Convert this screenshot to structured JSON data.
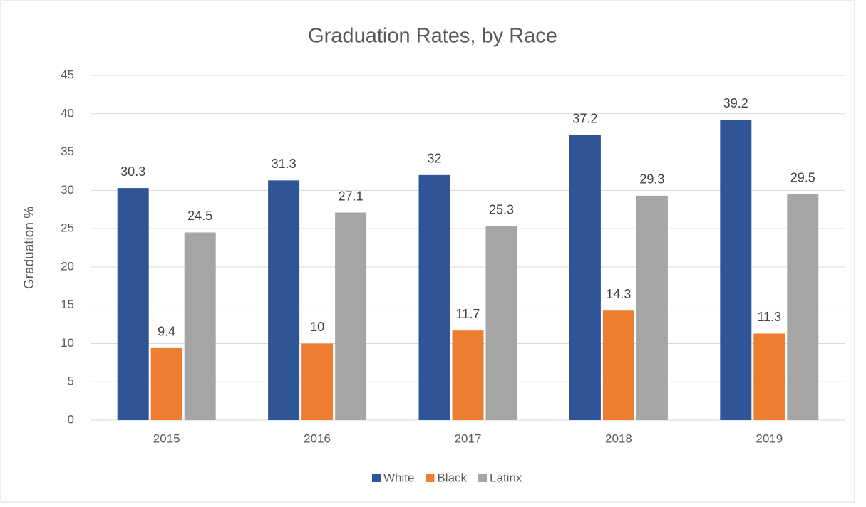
{
  "chart_data": {
    "type": "bar",
    "title": "Graduation Rates, by Race",
    "y_label": "Graduation %",
    "categories": [
      "2015",
      "2016",
      "2017",
      "2018",
      "2019"
    ],
    "series": [
      {
        "name": "White",
        "color": "#2f5597",
        "values": [
          30.3,
          31.3,
          32,
          37.2,
          39.2
        ]
      },
      {
        "name": "Black",
        "color": "#ed7d31",
        "values": [
          9.4,
          10,
          11.7,
          14.3,
          11.3
        ]
      },
      {
        "name": "Latinx",
        "color": "#a5a5a5",
        "values": [
          24.5,
          27.1,
          25.3,
          29.3,
          29.5
        ]
      }
    ],
    "ylim": [
      0,
      45
    ],
    "yticks": [
      0,
      5,
      10,
      15,
      20,
      25,
      30,
      35,
      40,
      45
    ],
    "grid": true,
    "legend": "bottom"
  }
}
